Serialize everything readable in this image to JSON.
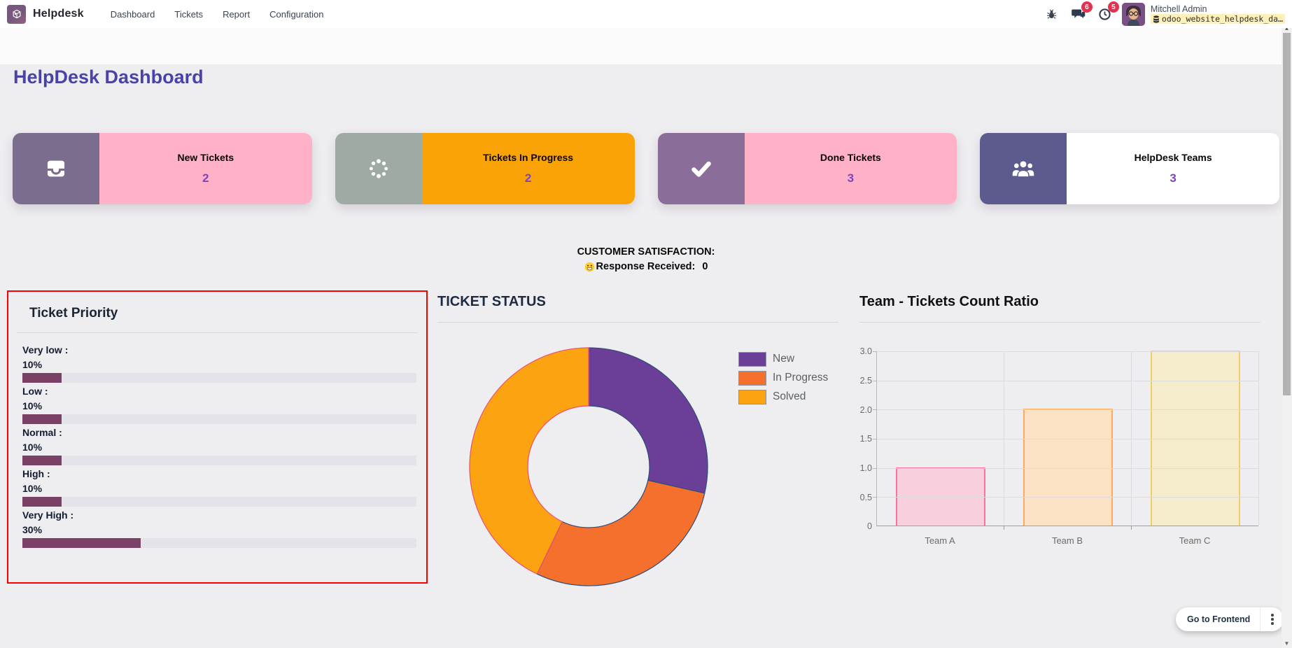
{
  "brand": {
    "name": "Helpdesk"
  },
  "nav": {
    "items": [
      "Dashboard",
      "Tickets",
      "Report",
      "Configuration"
    ]
  },
  "systray": {
    "messages_badge": "6",
    "activities_badge": "5",
    "user": {
      "name": "Mitchell Admin",
      "database": "odoo_website_helpdesk_da…"
    }
  },
  "page": {
    "title": "HelpDesk Dashboard"
  },
  "theme": {
    "kpi_value_color": "#7d44bd",
    "title_color": "#4a42a7",
    "priority_border_color": "#fb0000"
  },
  "kpis": [
    {
      "label": "New Tickets",
      "value": "2",
      "icon": "inbox-icon",
      "icon_bg": "#7a6d8e",
      "body_bg": "#ffb1c8"
    },
    {
      "label": "Tickets In Progress",
      "value": "2",
      "icon": "spinner-icon",
      "icon_bg": "#9faaa4",
      "body_bg": "#f9a306"
    },
    {
      "label": "Done Tickets",
      "value": "3",
      "icon": "check-icon",
      "icon_bg": "#8a6d99",
      "body_bg": "#ffb1c8"
    },
    {
      "label": "HelpDesk Teams",
      "value": "3",
      "icon": "users-icon",
      "icon_bg": "#5d5b8d",
      "body_bg": "#ffffff"
    }
  ],
  "satisfaction": {
    "title": "CUSTOMER SATISFACTION:",
    "emoji": "smiley-icon",
    "label": "Response Received:",
    "value": "0"
  },
  "priority": {
    "title": "Ticket Priority",
    "bar_color": "#7b4065",
    "track_color": "#e4e3ea",
    "items": [
      {
        "label": "Very low :",
        "pct": "10%",
        "value": 10
      },
      {
        "label": "Low :",
        "pct": "10%",
        "value": 10
      },
      {
        "label": "Normal :",
        "pct": "10%",
        "value": 10
      },
      {
        "label": "High :",
        "pct": "10%",
        "value": 10
      },
      {
        "label": "Very High :",
        "pct": "30%",
        "value": 30
      }
    ]
  },
  "chart_data": [
    {
      "type": "pie",
      "donut": true,
      "title": "TICKET STATUS",
      "labels": [
        "New",
        "In Progress",
        "Solved"
      ],
      "values": [
        2,
        2,
        3
      ],
      "colors": [
        "#6b3e98",
        "#f4702c",
        "#fca311"
      ],
      "slice_strokes": [
        "#2e4d78",
        "#2e4d78",
        "#ee4d72"
      ],
      "legend_position": "right"
    },
    {
      "type": "bar",
      "title": "Team - Tickets Count Ratio",
      "categories": [
        "Team A",
        "Team B",
        "Team C"
      ],
      "values": [
        1,
        2,
        3
      ],
      "ylim": [
        0,
        3
      ],
      "yticks": [
        "3.0",
        "2.5",
        "2.0",
        "1.5",
        "1.0",
        "0.5",
        "0"
      ],
      "bar_fills": [
        "#f8cfdc",
        "#fbe2c4",
        "#f4eccb"
      ],
      "bar_borders": [
        "#f8739c",
        "#fcab5c",
        "#f3d065"
      ],
      "grid": true,
      "legend_position": "none"
    }
  ],
  "footer": {
    "frontend_label": "Go to Frontend"
  }
}
